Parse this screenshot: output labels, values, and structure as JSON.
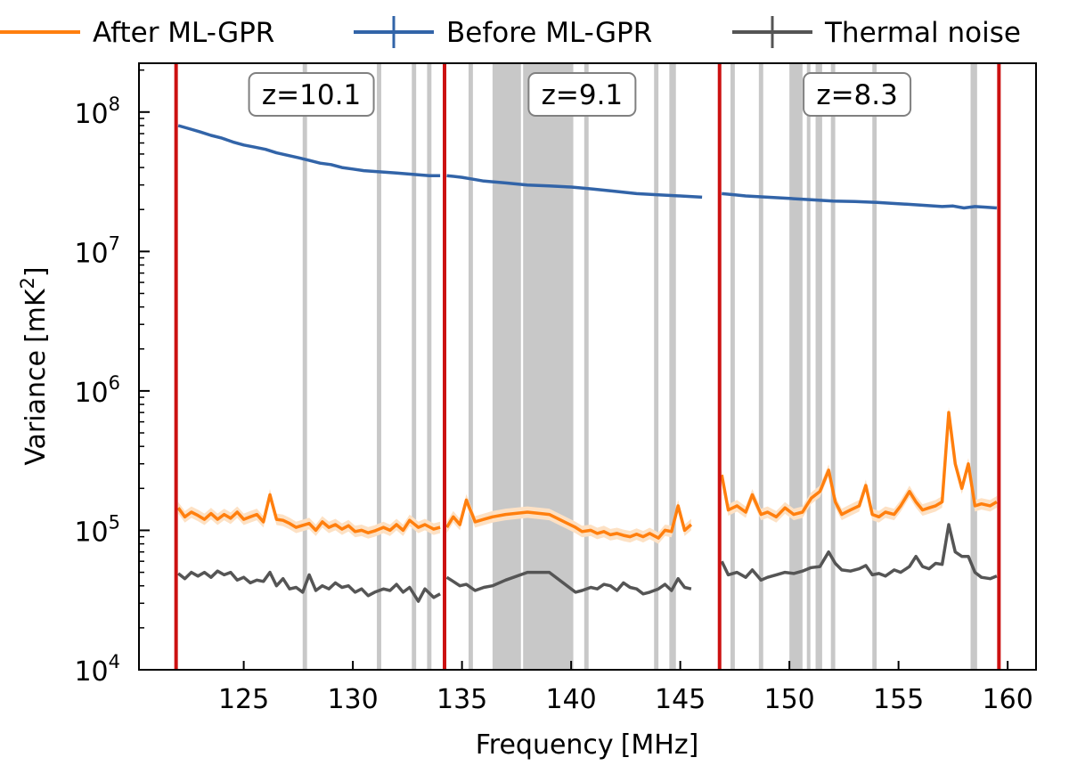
{
  "chart_data": {
    "type": "line",
    "xlabel": "Frequency",
    "xlabel_unit": "[MHz]",
    "ylabel": "Variance",
    "ylabel_unit_open": "[mK",
    "ylabel_unit_sup": "2",
    "ylabel_unit_close": "]",
    "yscale": "log",
    "xlim": [
      120.2,
      161.3
    ],
    "ylim_exp": [
      4,
      8.35
    ],
    "x_ticks": [
      125,
      130,
      135,
      140,
      145,
      150,
      155,
      160
    ],
    "y_tick_exps": [
      4,
      5,
      6,
      7,
      8
    ],
    "y_tick_base": "10",
    "legend": {
      "placement": "top",
      "entries": [
        {
          "label": "After ML-GPR",
          "color": "#ff7f0e",
          "errorbar": false
        },
        {
          "label": "Before ML-GPR",
          "color": "#3264a8",
          "errorbar": true
        },
        {
          "label": "Thermal noise",
          "color": "#555555",
          "errorbar": true
        }
      ]
    },
    "redshift_boundaries_mhz": [
      121.9,
      134.2,
      146.8,
      159.6
    ],
    "boundary_color": "#cc1111",
    "redshift_labels": [
      {
        "text": "z=10.1",
        "x_center": 128.1
      },
      {
        "text": "z=9.1",
        "x_center": 140.5
      },
      {
        "text": "z=8.3",
        "x_center": 153.1
      }
    ],
    "flagged_bands_mhz": [
      [
        127.7,
        127.9
      ],
      [
        131.1,
        131.3
      ],
      [
        132.7,
        132.9
      ],
      [
        133.4,
        133.6
      ],
      [
        135.3,
        135.5
      ],
      [
        136.4,
        137.7
      ],
      [
        137.8,
        140.1
      ],
      [
        140.6,
        140.8
      ],
      [
        143.8,
        144.0
      ],
      [
        144.5,
        144.8
      ],
      [
        147.3,
        147.5
      ],
      [
        148.6,
        148.8
      ],
      [
        150.0,
        150.6
      ],
      [
        150.8,
        150.95
      ],
      [
        151.2,
        151.5
      ],
      [
        151.9,
        152.1
      ],
      [
        153.8,
        154.0
      ],
      [
        158.3,
        158.6
      ]
    ],
    "flag_color": "#c8c8c8",
    "series": [
      {
        "name": "Before ML-GPR",
        "color": "#3264a8",
        "segments": [
          {
            "x": [
              122.0,
              122.5,
              123.0,
              123.5,
              124.0,
              124.5,
              125.0,
              125.5,
              126.0,
              126.5,
              127.0,
              127.5,
              128.0,
              128.5,
              129.0,
              129.5,
              130.0,
              130.5,
              131.0,
              131.5,
              132.0,
              132.5,
              133.0,
              133.5,
              134.0
            ],
            "y": [
              80000000.0,
              76000000.0,
              72000000.0,
              68000000.0,
              65000000.0,
              61000000.0,
              58000000.0,
              56000000.0,
              54000000.0,
              51000000.0,
              49000000.0,
              47000000.0,
              45000000.0,
              43000000.0,
              42000000.0,
              40000000.0,
              39000000.0,
              38000000.0,
              37500000.0,
              37000000.0,
              36500000.0,
              36000000.0,
              35500000.0,
              35000000.0,
              35000000.0
            ]
          },
          {
            "x": [
              134.3,
              135.0,
              135.5,
              136.0,
              137.0,
              138.0,
              139.0,
              140.0,
              141.0,
              142.0,
              143.0,
              144.0,
              145.0,
              146.0
            ],
            "y": [
              35000000.0,
              34000000.0,
              33000000.0,
              32000000.0,
              31000000.0,
              30000000.0,
              29500000.0,
              29000000.0,
              28000000.0,
              27000000.0,
              26000000.0,
              25500000.0,
              25000000.0,
              24500000.0
            ]
          },
          {
            "x": [
              146.9,
              147.5,
              148.0,
              149.0,
              150.0,
              151.0,
              152.0,
              153.0,
              154.0,
              155.0,
              156.0,
              157.0,
              157.5,
              158.0,
              158.5,
              159.0,
              159.5
            ],
            "y": [
              26000000.0,
              25500000.0,
              25000000.0,
              24500000.0,
              24000000.0,
              23500000.0,
              23000000.0,
              22800000.0,
              22500000.0,
              22000000.0,
              21500000.0,
              21000000.0,
              21200000.0,
              20500000.0,
              21000000.0,
              20800000.0,
              20500000.0
            ]
          }
        ]
      },
      {
        "name": "After ML-GPR",
        "color": "#ff7f0e",
        "band_color": "#fde1c4",
        "segments": [
          {
            "x": [
              122.0,
              122.3,
              122.6,
              122.9,
              123.2,
              123.5,
              123.8,
              124.1,
              124.4,
              124.7,
              125.0,
              125.3,
              125.6,
              125.9,
              126.2,
              126.5,
              126.8,
              127.1,
              127.4,
              128.0,
              128.3,
              128.6,
              128.9,
              129.2,
              129.5,
              129.8,
              130.1,
              130.4,
              130.7,
              131.0,
              131.4,
              131.7,
              132.0,
              132.3,
              132.6,
              133.0,
              133.3,
              133.7,
              134.0
            ],
            "y": [
              145000.0,
              125000.0,
              135000.0,
              128000.0,
              120000.0,
              132000.0,
              120000.0,
              130000.0,
              122000.0,
              135000.0,
              120000.0,
              125000.0,
              130000.0,
              115000.0,
              180000.0,
              120000.0,
              118000.0,
              112000.0,
              105000.0,
              112000.0,
              100000.0,
              115000.0,
              105000.0,
              110000.0,
              102000.0,
              108000.0,
              98000.0,
              100000.0,
              96000.0,
              99000.0,
              105000.0,
              100000.0,
              110000.0,
              100000.0,
              118000.0,
              105000.0,
              110000.0,
              102000.0,
              105000.0
            ]
          },
          {
            "x": [
              134.3,
              134.6,
              134.9,
              135.2,
              135.6,
              136.0,
              136.4,
              137.0,
              138.0,
              139.0,
              140.2,
              140.5,
              140.9,
              141.2,
              141.5,
              141.8,
              142.1,
              142.4,
              142.7,
              143.0,
              143.3,
              143.6,
              144.0,
              144.3,
              144.6,
              144.9,
              145.2,
              145.5
            ],
            "y": [
              105000.0,
              125000.0,
              110000.0,
              165000.0,
              115000.0,
              120000.0,
              125000.0,
              130000.0,
              135000.0,
              130000.0,
              105000.0,
              98000.0,
              100000.0,
              95000.0,
              98000.0,
              93000.0,
              95000.0,
              92000.0,
              90000.0,
              94000.0,
              90000.0,
              95000.0,
              88000.0,
              100000.0,
              98000.0,
              150000.0,
              100000.0,
              110000.0
            ]
          },
          {
            "x": [
              146.9,
              147.2,
              147.6,
              148.0,
              148.3,
              148.7,
              149.0,
              149.4,
              149.8,
              150.2,
              150.6,
              151.0,
              151.4,
              151.8,
              152.1,
              152.4,
              152.8,
              153.2,
              153.5,
              153.8,
              154.1,
              154.4,
              154.8,
              155.1,
              155.5,
              155.8,
              156.1,
              156.4,
              156.7,
              157.0,
              157.3,
              157.6,
              157.9,
              158.2,
              158.5,
              158.8,
              159.2,
              159.5
            ],
            "y": [
              250000.0,
              140000.0,
              150000.0,
              135000.0,
              180000.0,
              130000.0,
              135000.0,
              125000.0,
              145000.0,
              130000.0,
              135000.0,
              170000.0,
              190000.0,
              270000.0,
              160000.0,
              130000.0,
              140000.0,
              150000.0,
              210000.0,
              130000.0,
              125000.0,
              135000.0,
              130000.0,
              150000.0,
              190000.0,
              160000.0,
              140000.0,
              145000.0,
              150000.0,
              160000.0,
              700000.0,
              300000.0,
              200000.0,
              300000.0,
              150000.0,
              155000.0,
              150000.0,
              160000.0
            ]
          }
        ]
      },
      {
        "name": "Thermal noise",
        "color": "#555555",
        "segments": [
          {
            "x": [
              122.0,
              122.3,
              122.6,
              122.9,
              123.2,
              123.5,
              123.8,
              124.1,
              124.4,
              124.7,
              125.0,
              125.3,
              125.6,
              125.9,
              126.2,
              126.5,
              126.8,
              127.1,
              127.4,
              127.7,
              128.0,
              128.3,
              128.6,
              128.9,
              129.2,
              129.5,
              129.8,
              130.1,
              130.4,
              130.7,
              131.0,
              131.4,
              131.7,
              132.0,
              132.3,
              132.6,
              133.0,
              133.3,
              133.7,
              134.0
            ],
            "y": [
              49000.0,
              45000.0,
              50000.0,
              47000.0,
              50000.0,
              46000.0,
              51000.0,
              48000.0,
              50000.0,
              44000.0,
              46000.0,
              42000.0,
              44000.0,
              43000.0,
              50000.0,
              40000.0,
              45000.0,
              38000.0,
              39000.0,
              36000.0,
              48000.0,
              37000.0,
              40000.0,
              38000.0,
              42000.0,
              39000.0,
              40000.0,
              36000.0,
              38000.0,
              34000.0,
              36000.0,
              38000.0,
              37000.0,
              41000.0,
              36000.0,
              39000.0,
              31000.0,
              38000.0,
              33000.0,
              35000.0
            ]
          },
          {
            "x": [
              134.3,
              134.6,
              134.9,
              135.2,
              135.6,
              136.0,
              136.4,
              137.0,
              138.0,
              139.0,
              140.2,
              140.5,
              140.9,
              141.2,
              141.5,
              141.8,
              142.1,
              142.4,
              142.7,
              143.0,
              143.3,
              143.6,
              144.0,
              144.3,
              144.6,
              144.9,
              145.2,
              145.5
            ],
            "y": [
              46000.0,
              43000.0,
              40000.0,
              41000.0,
              37000.0,
              39000.0,
              40000.0,
              44000.0,
              50000.0,
              50000.0,
              36000.0,
              37000.0,
              39000.0,
              38000.0,
              41000.0,
              40000.0,
              37000.0,
              42000.0,
              39000.0,
              38000.0,
              35000.0,
              36000.0,
              38000.0,
              41000.0,
              37000.0,
              45000.0,
              39000.0,
              38000.0
            ]
          },
          {
            "x": [
              146.9,
              147.2,
              147.6,
              148.0,
              148.3,
              148.7,
              149.0,
              149.4,
              149.8,
              150.2,
              150.6,
              151.0,
              151.4,
              151.8,
              152.1,
              152.4,
              152.8,
              153.2,
              153.5,
              153.8,
              154.1,
              154.4,
              154.8,
              155.1,
              155.5,
              155.8,
              156.1,
              156.4,
              156.7,
              157.0,
              157.3,
              157.6,
              157.9,
              158.2,
              158.5,
              158.8,
              159.2,
              159.5
            ],
            "y": [
              60000.0,
              48000.0,
              50000.0,
              46000.0,
              52000.0,
              44000.0,
              46000.0,
              48000.0,
              50000.0,
              49000.0,
              51000.0,
              54000.0,
              55000.0,
              70000.0,
              58000.0,
              52000.0,
              51000.0,
              53000.0,
              56000.0,
              48000.0,
              49000.0,
              47000.0,
              52000.0,
              50000.0,
              55000.0,
              65000.0,
              55000.0,
              53000.0,
              58000.0,
              57000.0,
              110000.0,
              70000.0,
              65000.0,
              65000.0,
              50000.0,
              46000.0,
              45000.0,
              47000.0
            ]
          }
        ]
      }
    ]
  }
}
